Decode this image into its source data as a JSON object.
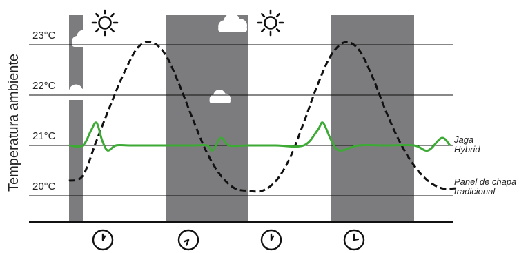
{
  "chart_data": {
    "type": "line",
    "title": "",
    "xlabel": "",
    "ylabel": "Temperatura ambiente",
    "yticks": [
      "20°C",
      "21°C",
      "22°C",
      "23°C"
    ],
    "ylim": [
      19.5,
      23.2
    ],
    "grid": true,
    "legend": "labels at right end of each line",
    "icons": {
      "sun": "sun-icon",
      "cloud": "cloud-icon",
      "clock": "clock-icon"
    },
    "series": [
      {
        "name": "Jaga Hybrid",
        "label_lines": [
          "Jaga",
          "Hybrid"
        ],
        "color": "#3daa35",
        "style": "solid",
        "x": [
          0,
          5,
          8,
          10,
          12,
          14,
          17,
          22,
          32,
          45,
          50,
          52,
          55,
          58,
          65,
          75,
          85,
          90,
          92,
          95,
          98,
          105,
          115,
          125,
          130,
          135,
          138
        ],
        "y": [
          21.0,
          21.0,
          21.3,
          21.45,
          21.1,
          20.9,
          21.0,
          21.0,
          21.0,
          21.0,
          21.0,
          20.9,
          21.15,
          21.0,
          21.0,
          21.0,
          21.0,
          21.3,
          21.45,
          21.1,
          20.9,
          21.0,
          21.0,
          21.0,
          20.9,
          21.15,
          21.0
        ]
      },
      {
        "name": "Panel de chapa tradicional",
        "label_lines": [
          "Panel de chapa",
          "tradicional"
        ],
        "color": "#111111",
        "style": "dashed",
        "x": [
          0,
          5,
          10,
          15,
          20,
          25,
          30,
          35,
          40,
          45,
          50,
          55,
          60,
          65,
          70,
          75,
          80,
          85,
          90,
          95,
          100,
          105,
          110,
          115,
          120,
          125,
          130,
          135,
          140
        ],
        "y": [
          20.3,
          20.4,
          21.1,
          21.8,
          22.45,
          22.95,
          23.05,
          22.8,
          22.2,
          21.5,
          20.85,
          20.4,
          20.15,
          20.1,
          20.1,
          20.3,
          20.75,
          21.45,
          22.2,
          22.8,
          23.05,
          22.9,
          22.35,
          21.65,
          21.05,
          20.6,
          20.3,
          20.15,
          20.15
        ]
      }
    ],
    "shaded_periods": [
      [
        -5,
        5
      ],
      [
        35,
        65
      ],
      [
        95,
        125
      ]
    ],
    "sun_positions": [
      13,
      73
    ],
    "clock_positions": [
      11,
      42,
      72,
      102
    ],
    "colors": {
      "background": "#ffffff",
      "shade": "#7c7b7d",
      "grid": "#111111"
    }
  }
}
